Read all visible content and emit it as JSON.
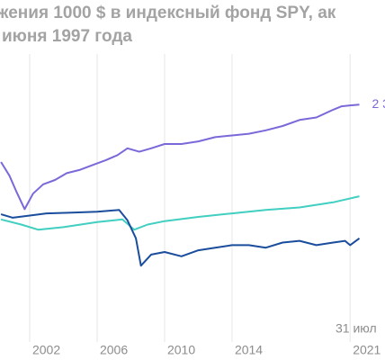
{
  "chart_data": {
    "type": "line",
    "title": "жения 1000 $ в индексный фонд SPY, ак",
    "subtitle": "июня 1997 года",
    "annotation": "31 июл",
    "end_label": "2 3",
    "xlim": [
      2000.24,
      2023.07
    ],
    "xticks": [
      2002,
      2006,
      2010,
      2014,
      2021
    ],
    "ylim": [
      -680,
      3520
    ],
    "grid": true,
    "series": [
      {
        "color": "#7b68d9",
        "x": [
          2000.3,
          2000.8,
          2001.2,
          2001.7,
          2002.2,
          2002.8,
          2003.5,
          2004.2,
          2005.0,
          2005.8,
          2006.5,
          2007.2,
          2007.8,
          2008.5,
          2009.2,
          2010.0,
          2011.0,
          2012.0,
          2013.0,
          2014.0,
          2015.0,
          2016.0,
          2017.0,
          2018.0,
          2019.0,
          2020.0,
          2020.5,
          2021.0,
          2021.55
        ],
        "values": [
          1630,
          1470,
          1290,
          1080,
          1260,
          1370,
          1420,
          1500,
          1540,
          1600,
          1650,
          1710,
          1790,
          1750,
          1790,
          1840,
          1840,
          1870,
          1920,
          1940,
          1960,
          2000,
          2050,
          2120,
          2150,
          2240,
          2280,
          2290,
          2300
        ]
      },
      {
        "color": "#40cfc0",
        "x": [
          2000.3,
          2001.5,
          2002.5,
          2004.0,
          2006.0,
          2007.5,
          2008.2,
          2009.0,
          2010.0,
          2012.0,
          2014.0,
          2016.0,
          2018.0,
          2020.0,
          2021.55
        ],
        "values": [
          960,
          900,
          840,
          870,
          930,
          960,
          840,
          900,
          940,
          990,
          1030,
          1070,
          1100,
          1160,
          1230
        ]
      },
      {
        "color": "#1a4d9c",
        "x": [
          2000.3,
          2001.0,
          2001.8,
          2003.0,
          2004.5,
          2006.0,
          2007.3,
          2007.8,
          2008.3,
          2008.6,
          2009.2,
          2010.0,
          2011.0,
          2012.0,
          2013.0,
          2014.0,
          2015.0,
          2016.0,
          2017.0,
          2018.0,
          2019.0,
          2020.0,
          2020.7,
          2021.0,
          2021.55
        ],
        "values": [
          1020,
          980,
          1000,
          1030,
          1040,
          1050,
          1070,
          950,
          740,
          420,
          550,
          580,
          530,
          600,
          630,
          660,
          660,
          630,
          690,
          710,
          660,
          690,
          710,
          660,
          740
        ]
      }
    ]
  }
}
